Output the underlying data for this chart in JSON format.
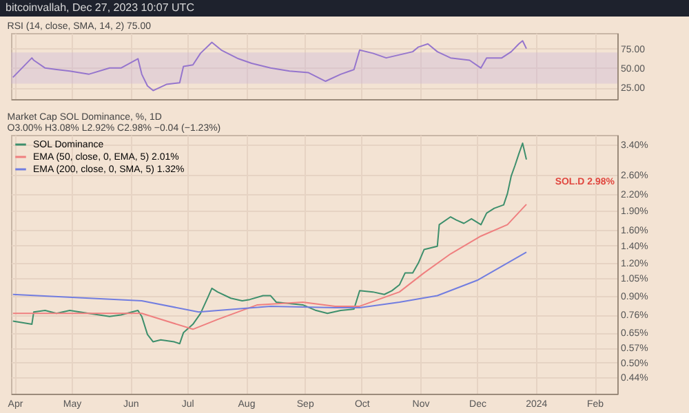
{
  "chart_data": [
    {
      "type": "line",
      "title": "RSI (14, close, SMA, 14, 2) 75.00",
      "annotations": [
        "bitcoinvallah, Dec 27, 2023 10:07 UTC"
      ],
      "x": [
        "2023-03-31",
        "2023-04-10",
        "2023-04-11",
        "2023-04-17",
        "2023-04-23",
        "2023-04-30",
        "2023-05-10",
        "2023-05-21",
        "2023-05-27",
        "2023-06-05",
        "2023-06-07",
        "2023-06-10",
        "2023-06-13",
        "2023-06-20",
        "2023-06-27",
        "2023-06-29",
        "2023-07-04",
        "2023-07-08",
        "2023-07-14",
        "2023-07-19",
        "2023-07-28",
        "2023-08-04",
        "2023-08-14",
        "2023-08-24",
        "2023-09-03",
        "2023-09-12",
        "2023-09-20",
        "2023-09-27",
        "2023-09-30",
        "2023-10-07",
        "2023-10-14",
        "2023-10-21",
        "2023-10-28",
        "2023-10-31",
        "2023-11-05",
        "2023-11-10",
        "2023-11-17",
        "2023-11-27",
        "2023-12-03",
        "2023-12-06",
        "2023-12-14",
        "2023-12-19",
        "2023-12-23",
        "2023-12-25",
        "2023-12-27"
      ],
      "series": [
        {
          "color": "#9575cd",
          "values": [
            38,
            63,
            60,
            50,
            48,
            46,
            42,
            50,
            50,
            62,
            42,
            27,
            21,
            29,
            31,
            52,
            54,
            69,
            83,
            73,
            62,
            56,
            50,
            46,
            44,
            33,
            42,
            48,
            73,
            69,
            63,
            67,
            71,
            77,
            81,
            71,
            63,
            60,
            50,
            63,
            63,
            71,
            81,
            85,
            75
          ]
        }
      ],
      "xlim": [
        "2023-03-30",
        "2024-02-13"
      ],
      "xticks": [
        {
          "value": "2023-04-01",
          "label": null
        },
        {
          "value": "2023-05-01",
          "label": null
        },
        {
          "value": "2023-06-01",
          "label": null
        },
        {
          "value": "2023-07-01",
          "label": null
        },
        {
          "value": "2023-08-01",
          "label": null
        },
        {
          "value": "2023-09-01",
          "label": null
        },
        {
          "value": "2023-10-01",
          "label": null
        },
        {
          "value": "2023-11-01",
          "label": null
        },
        {
          "value": "2023-12-01",
          "label": null
        },
        {
          "value": "2024-01-01",
          "label": null
        },
        {
          "value": "2024-02-01",
          "label": null
        }
      ],
      "ylim": [
        10,
        95
      ],
      "yticks": [
        {
          "value": 25,
          "label": "25.00"
        },
        {
          "value": 50,
          "label": "50.00"
        },
        {
          "value": 75,
          "label": "75.00"
        }
      ],
      "bands": [
        {
          "axis": "y",
          "from": 30,
          "to": 70,
          "color": "#c9b3d9"
        }
      ],
      "grid": true,
      "tick_labels": "y"
    },
    {
      "type": "line",
      "title": "Market Cap SOL Dominance, %, 1D",
      "subtitle": "O3.00% H3.08% L2.92% C2.98% −0.04 (−1.23%)",
      "log": true,
      "series": [
        {
          "name": "SOL Dominance",
          "color": "#3d8f6c",
          "x": [
            "2023-03-31",
            "2023-04-10",
            "2023-04-11",
            "2023-04-17",
            "2023-04-23",
            "2023-04-30",
            "2023-05-10",
            "2023-05-21",
            "2023-05-27",
            "2023-06-05",
            "2023-06-07",
            "2023-06-10",
            "2023-06-13",
            "2023-06-17",
            "2023-06-24",
            "2023-06-27",
            "2023-06-29",
            "2023-07-04",
            "2023-07-08",
            "2023-07-12",
            "2023-07-14",
            "2023-07-17",
            "2023-07-24",
            "2023-07-30",
            "2023-08-03",
            "2023-08-10",
            "2023-08-14",
            "2023-08-17",
            "2023-08-24",
            "2023-08-31",
            "2023-09-07",
            "2023-09-13",
            "2023-09-20",
            "2023-09-27",
            "2023-09-30",
            "2023-10-07",
            "2023-10-13",
            "2023-10-17",
            "2023-10-21",
            "2023-10-24",
            "2023-10-28",
            "2023-10-31",
            "2023-11-03",
            "2023-11-10",
            "2023-11-11",
            "2023-11-17",
            "2023-11-20",
            "2023-11-24",
            "2023-11-28",
            "2023-12-03",
            "2023-12-06",
            "2023-12-10",
            "2023-12-15",
            "2023-12-17",
            "2023-12-19",
            "2023-12-21",
            "2023-12-23",
            "2023-12-25",
            "2023-12-27"
          ],
          "values": [
            0.72,
            0.7,
            0.78,
            0.79,
            0.77,
            0.79,
            0.77,
            0.75,
            0.76,
            0.79,
            0.75,
            0.64,
            0.6,
            0.61,
            0.6,
            0.59,
            0.65,
            0.7,
            0.77,
            0.89,
            0.96,
            0.93,
            0.88,
            0.86,
            0.87,
            0.9,
            0.9,
            0.85,
            0.84,
            0.83,
            0.79,
            0.77,
            0.79,
            0.8,
            0.94,
            0.93,
            0.91,
            0.94,
            0.99,
            1.1,
            1.1,
            1.2,
            1.35,
            1.39,
            1.68,
            1.8,
            1.75,
            1.7,
            1.77,
            1.68,
            1.86,
            1.94,
            2.0,
            2.21,
            2.58,
            2.83,
            3.13,
            3.44,
            2.98
          ]
        },
        {
          "name": "EMA (50, close, 0, EMA, 5) 2.01%",
          "color": "#ef7f7f",
          "x": [
            "2023-03-31",
            "2023-06-07",
            "2023-07-04",
            "2023-07-17",
            "2023-08-07",
            "2023-08-31",
            "2023-09-17",
            "2023-09-30",
            "2023-10-21",
            "2023-11-03",
            "2023-11-17",
            "2023-12-03",
            "2023-12-17",
            "2023-12-27"
          ],
          "values": [
            0.77,
            0.77,
            0.67,
            0.73,
            0.83,
            0.85,
            0.82,
            0.82,
            0.93,
            1.1,
            1.3,
            1.52,
            1.68,
            2.01
          ]
        },
        {
          "name": "EMA (200, close, 0, SMA, 5) 1.32%",
          "color": "#717de0",
          "x": [
            "2023-03-31",
            "2023-06-07",
            "2023-07-07",
            "2023-08-14",
            "2023-09-17",
            "2023-09-30",
            "2023-10-21",
            "2023-11-10",
            "2023-12-01",
            "2023-12-17",
            "2023-12-27"
          ],
          "values": [
            0.91,
            0.86,
            0.78,
            0.82,
            0.81,
            0.81,
            0.85,
            0.9,
            1.03,
            1.2,
            1.32
          ]
        }
      ],
      "annotations": [
        "SOL.D 2.98%"
      ],
      "xlim": [
        "2023-03-30",
        "2024-02-13"
      ],
      "xticks": [
        {
          "value": "2023-04-01",
          "label": "Apr"
        },
        {
          "value": "2023-05-01",
          "label": "May"
        },
        {
          "value": "2023-06-01",
          "label": "Jun"
        },
        {
          "value": "2023-07-01",
          "label": "Jul"
        },
        {
          "value": "2023-08-01",
          "label": "Aug"
        },
        {
          "value": "2023-09-01",
          "label": "Sep"
        },
        {
          "value": "2023-10-01",
          "label": "Oct"
        },
        {
          "value": "2023-11-01",
          "label": "Nov"
        },
        {
          "value": "2023-12-01",
          "label": "Dec"
        },
        {
          "value": "2024-01-01",
          "label": "2024"
        },
        {
          "value": "2024-02-01",
          "label": "Feb"
        }
      ],
      "ylim": [
        0.38,
        3.7
      ],
      "yticks": [
        {
          "value": 0.44,
          "label": "0.44%"
        },
        {
          "value": 0.5,
          "label": "0.50%"
        },
        {
          "value": 0.57,
          "label": "0.57%"
        },
        {
          "value": 0.65,
          "label": "0.65%"
        },
        {
          "value": 0.76,
          "label": "0.76%"
        },
        {
          "value": 0.9,
          "label": "0.90%"
        },
        {
          "value": 1.05,
          "label": "1.05%"
        },
        {
          "value": 1.2,
          "label": "1.20%"
        },
        {
          "value": 1.4,
          "label": "1.40%"
        },
        {
          "value": 1.6,
          "label": "1.60%"
        },
        {
          "value": 1.9,
          "label": "1.90%"
        },
        {
          "value": 2.2,
          "label": "2.20%"
        },
        {
          "value": 2.6,
          "label": "2.60%"
        },
        {
          "value": 3.4,
          "label": "3.40%"
        }
      ],
      "grid": true,
      "legend": "top left"
    }
  ]
}
